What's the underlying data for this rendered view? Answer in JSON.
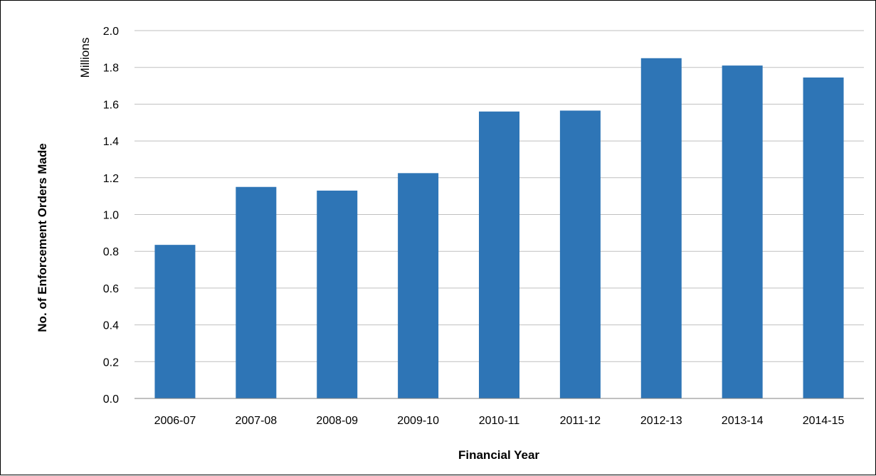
{
  "chart_data": {
    "type": "bar",
    "categories": [
      "2006-07",
      "2007-08",
      "2008-09",
      "2009-10",
      "2010-11",
      "2011-12",
      "2012-13",
      "2013-14",
      "2014-15"
    ],
    "values": [
      0.835,
      1.15,
      1.13,
      1.225,
      1.56,
      1.565,
      1.85,
      1.81,
      1.745
    ],
    "title": "",
    "xlabel": "Financial Year",
    "ylabel": "No. of Enforcement Orders Made",
    "y_unit_label": "Millions",
    "ylim": [
      0,
      2.0
    ],
    "yticks": [
      "0.0",
      "0.2",
      "0.4",
      "0.6",
      "0.8",
      "1.0",
      "1.2",
      "1.4",
      "1.6",
      "1.8",
      "2.0"
    ],
    "grid": true,
    "legend": "none",
    "bar_color": "#2E75B6",
    "grid_color": "#BFBFBF",
    "axis_color": "#808080"
  }
}
